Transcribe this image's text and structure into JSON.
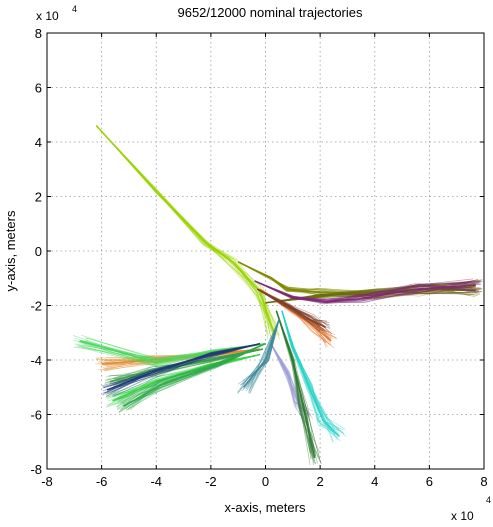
{
  "chart_data": {
    "type": "line",
    "title": "9652/12000 nominal trajectories",
    "xlabel": "x-axis, meters",
    "ylabel": "y-axis, meters",
    "xlim": [
      -80000,
      80000
    ],
    "ylim": [
      -80000,
      80000
    ],
    "x_ticks": [
      -80000,
      -60000,
      -40000,
      -20000,
      0,
      20000,
      40000,
      60000,
      80000
    ],
    "y_ticks": [
      -80000,
      -60000,
      -40000,
      -20000,
      0,
      20000,
      40000,
      60000,
      80000
    ],
    "x_tick_labels": [
      "-8",
      "-6",
      "-4",
      "-2",
      "0",
      "2",
      "4",
      "6",
      "8"
    ],
    "y_tick_labels": [
      "-8",
      "-6",
      "-4",
      "-2",
      "0",
      "2",
      "4",
      "6",
      "8"
    ],
    "x_exponent_base": "x 10",
    "x_exponent_power": "4",
    "y_exponent_base": "x 10",
    "y_exponent_power": "4",
    "grid": true,
    "series": [
      {
        "color": "#9ad400",
        "points": [
          [
            -62000,
            46000
          ],
          [
            -40000,
            22000
          ],
          [
            -22000,
            3000
          ],
          [
            -12000,
            -4000
          ],
          [
            -2000,
            -15000
          ],
          [
            3000,
            -30000
          ]
        ]
      },
      {
        "color": "#7f8a00",
        "points": [
          [
            -10000,
            -4000
          ],
          [
            2000,
            -10000
          ],
          [
            8000,
            -14000
          ],
          [
            20000,
            -15000
          ],
          [
            40000,
            -16000
          ],
          [
            55000,
            -14500
          ],
          [
            77000,
            -13000
          ]
        ]
      },
      {
        "color": "#6b6a10",
        "points": [
          [
            0,
            -19000
          ],
          [
            20000,
            -16500
          ],
          [
            40000,
            -15000
          ],
          [
            60000,
            -14000
          ],
          [
            77000,
            -14500
          ]
        ]
      },
      {
        "color": "#7f2a73",
        "points": [
          [
            -4000,
            -11000
          ],
          [
            10000,
            -17000
          ],
          [
            22000,
            -18500
          ],
          [
            35000,
            -17500
          ],
          [
            55000,
            -14000
          ],
          [
            77000,
            -12500
          ]
        ]
      },
      {
        "color": "#e8742a",
        "points": [
          [
            -2000,
            -14000
          ],
          [
            10000,
            -22000
          ],
          [
            18000,
            -28000
          ],
          [
            24000,
            -33000
          ]
        ]
      },
      {
        "color": "#7e3f2a",
        "points": [
          [
            -3000,
            -14000
          ],
          [
            8000,
            -20000
          ],
          [
            16000,
            -25000
          ],
          [
            22000,
            -28000
          ]
        ]
      },
      {
        "color": "#e08a2a",
        "points": [
          [
            -2000,
            -36000
          ],
          [
            -22000,
            -38500
          ],
          [
            -42000,
            -40000
          ],
          [
            -60000,
            -41500
          ]
        ]
      },
      {
        "color": "#3ad24a",
        "points": [
          [
            -2000,
            -38000
          ],
          [
            -20000,
            -42000
          ],
          [
            -40000,
            -48000
          ],
          [
            -56000,
            -55000
          ]
        ]
      },
      {
        "color": "#3a9b44",
        "points": [
          [
            -1000,
            -36000
          ],
          [
            -20000,
            -40000
          ],
          [
            -42000,
            -44000
          ],
          [
            -57000,
            -48000
          ]
        ]
      },
      {
        "color": "#4ad85a",
        "points": [
          [
            0,
            -34000
          ],
          [
            -20000,
            -37000
          ],
          [
            -40000,
            -41000
          ],
          [
            -68000,
            -33000
          ]
        ]
      },
      {
        "color": "#2fa84a",
        "points": [
          [
            0,
            -34000
          ],
          [
            -18000,
            -42000
          ],
          [
            -38000,
            -49000
          ],
          [
            -52000,
            -57000
          ]
        ]
      },
      {
        "color": "#1f3a78",
        "points": [
          [
            -2000,
            -34000
          ],
          [
            -20000,
            -38000
          ],
          [
            -40000,
            -44000
          ],
          [
            -58000,
            -51000
          ]
        ]
      },
      {
        "color": "#27d2c8",
        "points": [
          [
            6000,
            -22000
          ],
          [
            10000,
            -35000
          ],
          [
            16000,
            -50000
          ],
          [
            21000,
            -62000
          ],
          [
            27000,
            -68000
          ]
        ]
      },
      {
        "color": "#9fa0d8",
        "points": [
          [
            2000,
            -34000
          ],
          [
            8000,
            -45000
          ],
          [
            12000,
            -56000
          ],
          [
            15000,
            -60000
          ]
        ]
      },
      {
        "color": "#2e7a30",
        "points": [
          [
            4000,
            -22000
          ],
          [
            10000,
            -40000
          ],
          [
            14000,
            -58000
          ],
          [
            18000,
            -76000
          ]
        ]
      },
      {
        "color": "#3e8a9a",
        "points": [
          [
            5000,
            -25000
          ],
          [
            0,
            -40000
          ],
          [
            -8000,
            -50000
          ]
        ]
      }
    ]
  }
}
